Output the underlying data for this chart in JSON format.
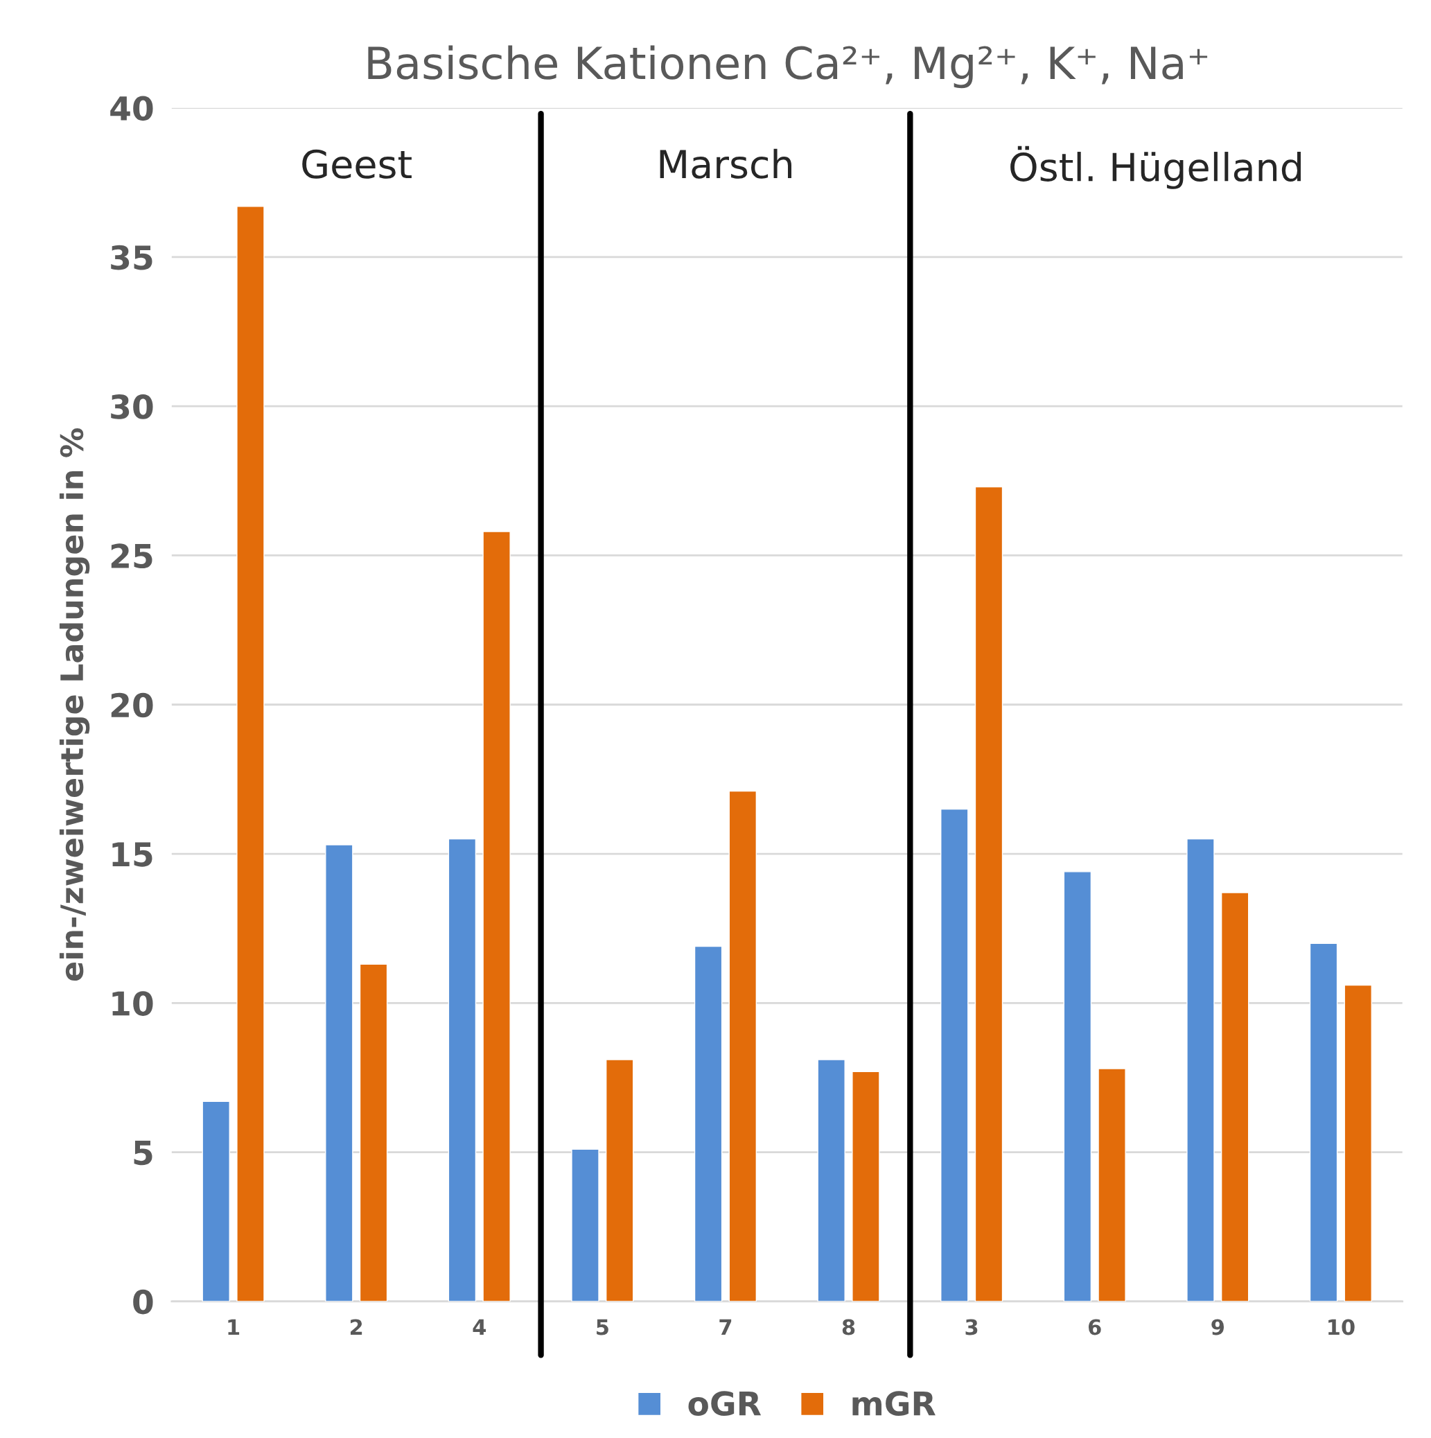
{
  "chart_data": {
    "type": "bar",
    "title": "Basische Kationen Ca²⁺, Mg²⁺, K⁺, Na⁺",
    "ylabel": "ein-/zweiwertige Ladungen in %",
    "categories": [
      "1",
      "2",
      "4",
      "5",
      "7",
      "8",
      "3",
      "6",
      "9",
      "10"
    ],
    "series": [
      {
        "name": "oGR",
        "color": "#558ed5",
        "values": [
          6.7,
          15.3,
          15.5,
          5.1,
          11.9,
          8.1,
          16.5,
          14.4,
          15.5,
          12.0
        ]
      },
      {
        "name": "mGR",
        "color": "#e36c0a",
        "values": [
          36.7,
          11.3,
          25.8,
          8.1,
          17.1,
          7.7,
          27.3,
          7.8,
          13.7,
          10.6
        ]
      }
    ],
    "annotations": [
      "Geest",
      "Marsch",
      "Östl. Hügelland"
    ],
    "ylim": [
      0,
      40
    ],
    "yticks": [
      0,
      5,
      10,
      15,
      20,
      25,
      30,
      35,
      40
    ],
    "grid": "y",
    "legend": "bottom"
  }
}
